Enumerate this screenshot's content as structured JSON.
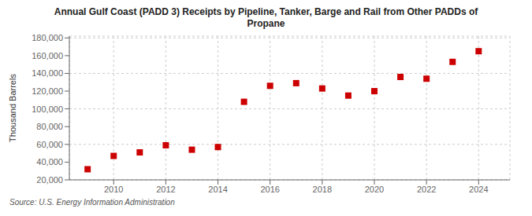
{
  "chart_data": {
    "type": "scatter",
    "title": "Annual Gulf Coast (PADD 3) Receipts by Pipeline, Tanker, Barge and Rail from Other PADDs of\nPropane",
    "y_label": "Thousand Barrels",
    "annotation": "Source: U.S. Energy Information Administration",
    "x": [
      2009,
      2010,
      2011,
      2012,
      2013,
      2014,
      2015,
      2016,
      2017,
      2018,
      2019,
      2020,
      2021,
      2022,
      2023,
      2024
    ],
    "values": [
      32000,
      47000,
      51000,
      59000,
      54000,
      57000,
      108000,
      126000,
      129000,
      123000,
      115000,
      120000,
      136000,
      134000,
      153000,
      165000
    ],
    "color": "#cc0000",
    "marker": "square",
    "xlim": [
      2008.3,
      2025.2
    ],
    "xticks": [
      2010,
      2012,
      2014,
      2016,
      2018,
      2020,
      2022,
      2024
    ],
    "ylim": [
      20000,
      182000
    ],
    "yticks": [
      {
        "value": 20000,
        "label": "20,000"
      },
      {
        "value": 40000,
        "label": "40,000"
      },
      {
        "value": 60000,
        "label": "60,000"
      },
      {
        "value": 80000,
        "label": "80,000"
      },
      {
        "value": 100000,
        "label": "100,000"
      },
      {
        "value": 120000,
        "label": "120,000"
      },
      {
        "value": 140000,
        "label": "140,000"
      },
      {
        "value": 160000,
        "label": "160,000"
      },
      {
        "value": 180000,
        "label": "180,000"
      }
    ],
    "grid": true
  }
}
